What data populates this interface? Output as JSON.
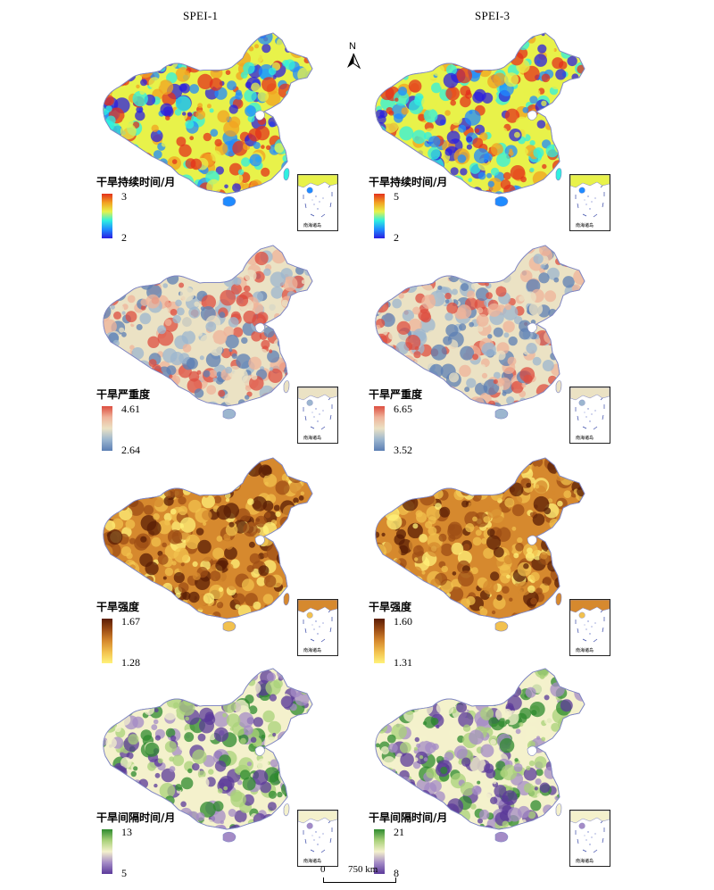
{
  "columns": [
    "SPEI-1",
    "SPEI-3"
  ],
  "north_label": "N",
  "inset_label": "南海诸岛",
  "scale": {
    "zero": "0",
    "end": "750 km"
  },
  "rows": [
    {
      "title": "干旱持续时间/月",
      "palette": [
        "#2b1de0",
        "#1f8bff",
        "#2ff0e0",
        "#e8f24a",
        "#f2a122",
        "#e3311c"
      ],
      "panels": [
        {
          "max": "3",
          "min": "2"
        },
        {
          "max": "5",
          "min": "2"
        }
      ]
    },
    {
      "title": "干旱严重度",
      "palette": [
        "#5c7fb4",
        "#9cb6cf",
        "#ebe2c4",
        "#efb39a",
        "#dd4e40"
      ],
      "panels": [
        {
          "max": "4.61",
          "min": "2.64"
        },
        {
          "max": "6.65",
          "min": "3.52"
        }
      ]
    },
    {
      "title": "干旱强度",
      "palette": [
        "#fff27a",
        "#f2c14e",
        "#d6892e",
        "#9d4d15",
        "#5a1d05"
      ],
      "panels": [
        {
          "max": "1.67",
          "min": "1.28"
        },
        {
          "max": "1.60",
          "min": "1.31"
        }
      ]
    },
    {
      "title": "干旱间隔时间/月",
      "palette": [
        "#5b3a9a",
        "#a48bc6",
        "#f4f1cc",
        "#a9d17a",
        "#2e8a2e"
      ],
      "panels": [
        {
          "max": "13",
          "min": "5"
        },
        {
          "max": "21",
          "min": "8"
        }
      ]
    }
  ]
}
